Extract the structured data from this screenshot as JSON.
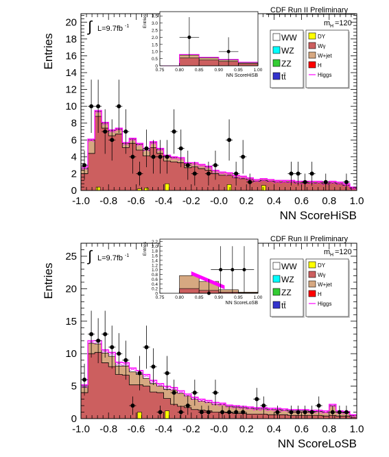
{
  "colors": {
    "frame": "#000000",
    "wgamma_fill": "#cc5f5f",
    "wjet_fill": "#d6a881",
    "dy_fill": "#ffff00",
    "higgs_line": "#ff00ff",
    "wz_fill": "#00ffff",
    "zz_fill": "#33cc33",
    "tt_fill": "#3333cc",
    "ww_fill": "#ffffff",
    "h_fill": "#ff0000",
    "data_marker": "#000000",
    "legend_shadow": "#cccccc"
  },
  "chart_data": [
    {
      "type": "bar",
      "id": "hisb",
      "header": "CDF Run II Preliminary",
      "mass_label": "m",
      "mass_sub": "H",
      "mass_value": "=120",
      "lumi_label": "L=9.7fb",
      "lumi_sup": "-1",
      "integral_symbol": "∫",
      "xlabel": "NN ScoreHiSB",
      "ylabel": "Entries",
      "xlim": [
        -1.0,
        1.0
      ],
      "ylim": [
        0,
        21
      ],
      "xticks": [
        "-1.0",
        "-0.8",
        "-0.6",
        "-0.4",
        "-0.2",
        "-0.0",
        "0.2",
        "0.4",
        "0.6",
        "0.8",
        "1.0"
      ],
      "yticks": [
        "0",
        "2",
        "4",
        "6",
        "8",
        "10",
        "12",
        "14",
        "16",
        "18",
        "20"
      ],
      "bins": 40,
      "wgamma": [
        2.0,
        4.4,
        8.8,
        7.4,
        6.5,
        6.7,
        5.1,
        5.6,
        4.8,
        4.1,
        5.1,
        4.4,
        3.5,
        3.4,
        3.3,
        2.7,
        2.8,
        2.6,
        2.4,
        2.0,
        1.8,
        1.8,
        1.5,
        1.4,
        1.3,
        1.1,
        1.2,
        1.1,
        1.0,
        1.0,
        1.0,
        0.9,
        0.9,
        0.9,
        0.9,
        0.8,
        0.9,
        0.8,
        0.6,
        0.3
      ],
      "wjet": [
        0.6,
        1.6,
        0.6,
        0.6,
        0.6,
        0.6,
        0.5,
        0.5,
        0.7,
        0.7,
        0.6,
        0.5,
        0.6,
        0.5,
        0.6,
        0.5,
        0.5,
        0.5,
        0.4,
        0.4,
        0.4,
        0.3,
        0.3,
        0.3,
        0.2,
        0.2,
        0.2,
        0.2,
        0.2,
        0.2,
        0.2,
        0.2,
        0.2,
        0.2,
        0.2,
        0.2,
        0.2,
        0.2,
        0.2,
        0.1
      ],
      "dy": [
        0,
        0,
        0.4,
        0,
        0,
        0,
        0,
        0,
        0.2,
        0.3,
        0,
        0,
        0.8,
        0,
        0,
        0,
        0,
        0,
        0,
        0,
        0,
        0.7,
        0,
        0,
        0,
        0,
        0.6,
        0,
        0,
        0,
        0,
        0,
        0,
        0,
        0,
        0,
        0,
        0,
        0,
        0
      ],
      "higgs": [
        2.8,
        6.1,
        9.5,
        8.1,
        7.2,
        7.4,
        5.7,
        6.2,
        5.6,
        5.0,
        5.8,
        5.0,
        4.2,
        4.0,
        3.9,
        3.3,
        3.3,
        3.1,
        2.9,
        2.4,
        2.2,
        2.1,
        1.8,
        1.7,
        1.5,
        1.3,
        1.4,
        1.3,
        1.2,
        1.2,
        1.2,
        1.1,
        1.1,
        1.1,
        1.1,
        1.0,
        1.1,
        1.0,
        0.8,
        0.4
      ],
      "data_points": [
        {
          "x": -0.975,
          "y": 3
        },
        {
          "x": -0.925,
          "y": 10
        },
        {
          "x": -0.875,
          "y": 10
        },
        {
          "x": -0.825,
          "y": 7
        },
        {
          "x": -0.775,
          "y": 6
        },
        {
          "x": -0.725,
          "y": 10
        },
        {
          "x": -0.675,
          "y": 7
        },
        {
          "x": -0.625,
          "y": 4
        },
        {
          "x": -0.575,
          "y": 2
        },
        {
          "x": -0.525,
          "y": 5
        },
        {
          "x": -0.475,
          "y": 4
        },
        {
          "x": -0.425,
          "y": 4
        },
        {
          "x": -0.375,
          "y": 4
        },
        {
          "x": -0.325,
          "y": 7
        },
        {
          "x": -0.275,
          "y": 5
        },
        {
          "x": -0.225,
          "y": 3
        },
        {
          "x": -0.175,
          "y": 2
        },
        {
          "x": -0.075,
          "y": 2
        },
        {
          "x": -0.025,
          "y": 3
        },
        {
          "x": 0.075,
          "y": 6
        },
        {
          "x": 0.125,
          "y": 2
        },
        {
          "x": 0.175,
          "y": 4
        },
        {
          "x": 0.225,
          "y": 1
        },
        {
          "x": 0.525,
          "y": 2
        },
        {
          "x": 0.575,
          "y": 2
        },
        {
          "x": 0.625,
          "y": 1
        },
        {
          "x": 0.675,
          "y": 2
        },
        {
          "x": 0.775,
          "y": 1
        },
        {
          "x": 0.925,
          "y": 1
        }
      ],
      "inset": {
        "ylabel": "Entries",
        "xlabel": "NN ScoreHiSB",
        "xlim": [
          0.75,
          1.0
        ],
        "ylim": [
          0,
          3.8
        ],
        "xticks": [
          "0.75",
          "0.80",
          "0.85",
          "0.90",
          "0.95",
          "1.00"
        ],
        "yticks": [
          "0",
          "0.5",
          "1.0",
          "1.5",
          "2.0",
          "2.5",
          "3.0",
          "3.5"
        ],
        "bin_edges": [
          0.75,
          0.8,
          0.85,
          0.9,
          0.95,
          1.0
        ],
        "wgamma": [
          0.0,
          0.55,
          0.4,
          0.3,
          0.15
        ],
        "wjet": [
          0.0,
          0.2,
          0.15,
          0.1,
          0.05
        ],
        "higgs": [
          0.0,
          0.8,
          0.6,
          0.45,
          0.25
        ],
        "data_points": [
          {
            "x": 0.825,
            "y": 2
          },
          {
            "x": 0.925,
            "y": 1
          }
        ]
      }
    },
    {
      "type": "bar",
      "id": "losb",
      "header": "CDF Run II Preliminary",
      "mass_label": "m",
      "mass_sub": "H",
      "mass_value": "=120",
      "lumi_label": "L=9.7fb",
      "lumi_sup": "-1",
      "integral_symbol": "∫",
      "xlabel": "NN ScoreLoSB",
      "ylabel": "Entries",
      "xlim": [
        -1.0,
        1.0
      ],
      "ylim": [
        0,
        27
      ],
      "xticks": [
        "-1.0",
        "-0.8",
        "-0.6",
        "-0.4",
        "-0.2",
        "-0.0",
        "0.2",
        "0.4",
        "0.6",
        "0.8",
        "1.0"
      ],
      "yticks": [
        "0",
        "5",
        "10",
        "15",
        "20",
        "25"
      ],
      "bins": 40,
      "wgamma": [
        4.0,
        10.0,
        10.2,
        8.6,
        8.0,
        6.8,
        6.7,
        5.2,
        5.2,
        5.0,
        4.1,
        4.0,
        3.1,
        2.2,
        1.9,
        1.7,
        1.4,
        1.3,
        1.2,
        1.0,
        1.0,
        0.9,
        0.8,
        0.8,
        0.7,
        0.7,
        0.7,
        0.6,
        0.6,
        0.6,
        0.5,
        0.5,
        0.5,
        0.5,
        0.5,
        0.4,
        0.5,
        0.4,
        0.4,
        0.2
      ],
      "wjet": [
        0.8,
        1.6,
        1.3,
        1.5,
        1.6,
        1.3,
        1.4,
        2.0,
        1.6,
        1.2,
        1.3,
        1.0,
        1.4,
        2.2,
        2.0,
        1.8,
        1.6,
        1.4,
        1.3,
        1.2,
        1.2,
        1.0,
        1.0,
        0.9,
        0.9,
        0.8,
        0.8,
        0.8,
        0.8,
        0.7,
        0.7,
        0.7,
        0.7,
        0.6,
        0.6,
        0.6,
        1.5,
        0.6,
        0.5,
        0.3
      ],
      "dy": [
        0,
        0,
        0,
        0,
        0,
        0,
        0,
        0,
        1.0,
        0,
        0,
        0,
        1.2,
        0,
        0,
        0,
        0,
        0,
        0,
        0,
        0,
        0,
        0,
        0,
        0,
        0,
        0,
        0,
        0,
        0,
        0,
        0,
        0,
        0,
        0,
        0,
        0,
        0,
        0,
        0
      ],
      "higgs": [
        5.2,
        12.0,
        12.0,
        10.6,
        10.2,
        8.7,
        8.6,
        7.8,
        7.4,
        6.8,
        5.9,
        5.4,
        5.0,
        4.8,
        4.3,
        3.8,
        3.3,
        3.0,
        2.8,
        2.5,
        2.4,
        2.1,
        2.0,
        1.9,
        1.8,
        1.7,
        1.7,
        1.6,
        1.6,
        1.5,
        1.4,
        1.4,
        1.4,
        1.3,
        1.3,
        1.2,
        2.2,
        1.2,
        1.1,
        0.6
      ],
      "data_points": [
        {
          "x": -0.975,
          "y": 6
        },
        {
          "x": -0.925,
          "y": 13
        },
        {
          "x": -0.875,
          "y": 12
        },
        {
          "x": -0.825,
          "y": 13
        },
        {
          "x": -0.775,
          "y": 11
        },
        {
          "x": -0.725,
          "y": 10
        },
        {
          "x": -0.675,
          "y": 9
        },
        {
          "x": -0.625,
          "y": 2
        },
        {
          "x": -0.575,
          "y": 7
        },
        {
          "x": -0.525,
          "y": 11
        },
        {
          "x": -0.475,
          "y": 8
        },
        {
          "x": -0.425,
          "y": 1
        },
        {
          "x": -0.375,
          "y": 7
        },
        {
          "x": -0.325,
          "y": 4
        },
        {
          "x": -0.275,
          "y": 1
        },
        {
          "x": -0.225,
          "y": 2
        },
        {
          "x": -0.175,
          "y": 4
        },
        {
          "x": -0.125,
          "y": 1
        },
        {
          "x": -0.075,
          "y": 1
        },
        {
          "x": -0.025,
          "y": 4
        },
        {
          "x": 0.025,
          "y": 1
        },
        {
          "x": 0.075,
          "y": 1
        },
        {
          "x": 0.125,
          "y": 1
        },
        {
          "x": 0.175,
          "y": 1
        },
        {
          "x": 0.275,
          "y": 3
        },
        {
          "x": 0.325,
          "y": 2
        },
        {
          "x": 0.425,
          "y": 1
        },
        {
          "x": 0.525,
          "y": 1
        },
        {
          "x": 0.575,
          "y": 1
        },
        {
          "x": 0.625,
          "y": 1
        },
        {
          "x": 0.675,
          "y": 1
        },
        {
          "x": 0.725,
          "y": 2
        },
        {
          "x": 0.825,
          "y": 1
        },
        {
          "x": 0.875,
          "y": 1
        },
        {
          "x": 0.925,
          "y": 1
        }
      ],
      "inset": {
        "ylabel": "Entries",
        "xlabel": "NN ScoreLoSB",
        "xlim": [
          0.75,
          1.0
        ],
        "ylim": [
          0,
          2.3
        ],
        "xticks": [
          "0.75",
          "0.80",
          "0.85",
          "0.90",
          "0.95",
          "1.00"
        ],
        "yticks": [
          "0",
          "0.2",
          "0.4",
          "0.6",
          "0.8",
          "1.0",
          "1.2",
          "1.4",
          "1.6",
          "1.8",
          "2.0",
          "2.2"
        ],
        "bin_edges": [
          0.75,
          0.8,
          0.85,
          0.9,
          0.95,
          1.0
        ],
        "wgamma": [
          0.0,
          0.2,
          0.12,
          0.05,
          0.02
        ],
        "wjet": [
          0.0,
          0.55,
          0.38,
          0.1,
          0.03
        ],
        "higgs_band": [
          {
            "x": 0.83,
            "y": 0.85
          },
          {
            "x": 0.915,
            "y": 0.25
          }
        ],
        "data_points": [
          {
            "x": 0.875,
            "y": 0
          },
          {
            "x": 0.905,
            "y": 1
          },
          {
            "x": 0.935,
            "y": 1
          },
          {
            "x": 0.965,
            "y": 1
          }
        ]
      }
    }
  ],
  "legend": {
    "left_items": [
      {
        "label": "WW",
        "color_key": "ww_fill"
      },
      {
        "label": "WZ",
        "color_key": "wz_fill"
      },
      {
        "label": "ZZ",
        "color_key": "zz_fill"
      },
      {
        "label": "tt̄",
        "color_key": "tt_fill"
      }
    ],
    "right_items": [
      {
        "label": "DY",
        "color_key": "dy_fill"
      },
      {
        "label": "Wγ",
        "color_key": "wgamma_fill"
      },
      {
        "label": "W+jet",
        "color_key": "wjet_fill"
      },
      {
        "label": "H",
        "color_key": "h_fill"
      },
      {
        "label": "Higgs",
        "color_key": "higgs_line",
        "line": true
      }
    ]
  }
}
